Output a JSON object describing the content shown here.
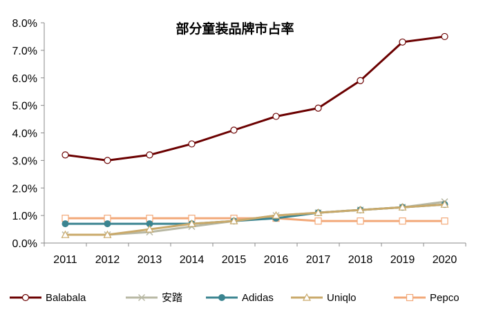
{
  "chart_data": {
    "type": "line",
    "title": "部分童装品牌市占率",
    "categories": [
      "2011",
      "2012",
      "2013",
      "2014",
      "2015",
      "2016",
      "2017",
      "2018",
      "2019",
      "2020"
    ],
    "y_ticks": [
      "0.0%",
      "1.0%",
      "2.0%",
      "3.0%",
      "4.0%",
      "5.0%",
      "6.0%",
      "7.0%",
      "8.0%"
    ],
    "ylim": [
      0,
      8
    ],
    "grid": false,
    "legend_position": "bottom",
    "series": [
      {
        "name": "Balabala",
        "color": "#6b0000",
        "marker": "open-circle",
        "values": [
          3.2,
          3.0,
          3.2,
          3.6,
          4.1,
          4.6,
          4.9,
          5.9,
          7.3,
          7.5
        ]
      },
      {
        "name": "安踏",
        "color": "#b8b8a4",
        "marker": "x",
        "values": [
          0.3,
          0.3,
          0.4,
          0.6,
          0.8,
          1.0,
          1.1,
          1.2,
          1.3,
          1.5
        ]
      },
      {
        "name": "Adidas",
        "color": "#3b8490",
        "marker": "filled-circle",
        "values": [
          0.7,
          0.7,
          0.7,
          0.7,
          0.8,
          0.9,
          1.1,
          1.2,
          1.3,
          1.4
        ]
      },
      {
        "name": "Uniqlo",
        "color": "#c9a96a",
        "marker": "open-triangle",
        "values": [
          0.3,
          0.3,
          0.5,
          0.7,
          0.8,
          1.0,
          1.1,
          1.2,
          1.3,
          1.4
        ]
      },
      {
        "name": "Pepco",
        "color": "#f2a878",
        "marker": "open-square",
        "values": [
          0.9,
          0.9,
          0.9,
          0.9,
          0.9,
          0.9,
          0.8,
          0.8,
          0.8,
          0.8
        ]
      }
    ]
  }
}
